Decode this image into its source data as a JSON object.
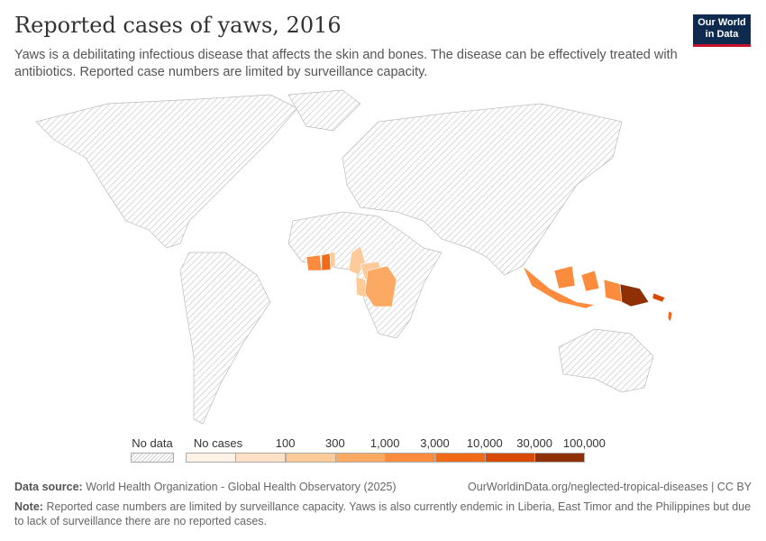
{
  "header": {
    "title": "Reported cases of yaws, 2016",
    "subtitle": "Yaws is a debilitating infectious disease that affects the skin and bones. The disease can be effectively treated with antibiotics. Reported case numbers are limited by surveillance capacity.",
    "logo_line1": "Our World",
    "logo_line2": "in Data"
  },
  "legend": {
    "no_data": "No data",
    "no_cases": "No cases",
    "ticks": [
      "100",
      "300",
      "1,000",
      "3,000",
      "10,000",
      "30,000",
      "100,000"
    ],
    "colors": [
      "#fef2e6",
      "#fde0c6",
      "#fdca99",
      "#fca963",
      "#fb8b3d",
      "#f06a17",
      "#d84a03",
      "#8e2f05"
    ]
  },
  "footer": {
    "source_label": "Data source:",
    "source": "World Health Organization - Global Health Observatory (2025)",
    "url": "OurWorldinData.org/neglected-tropical-diseases | CC BY",
    "note_label": "Note:",
    "note": "Reported case numbers are limited by surveillance capacity. Yaws is also currently endemic in Liberia, East Timor and the Philippines but due to lack of surveillance there are no reported cases."
  }
}
